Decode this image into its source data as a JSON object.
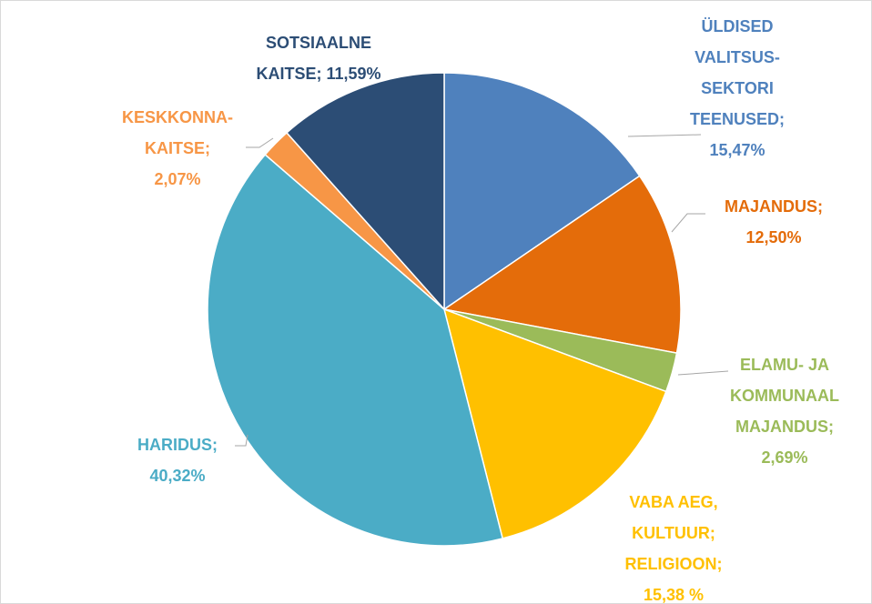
{
  "chart_data": {
    "type": "pie",
    "categories": [
      "ÜLDISED\nVALITSUS-\nSEKTORI\nTEENUSED;",
      "MAJANDUS;",
      "ELAMU- JA\nKOMMUNAAL\nMAJANDUS;",
      "VABA AEG,\nKULTUUR;\nRELIGIOON;",
      "HARIDUS;",
      "KESKKONNA-\nKAITSE;",
      "SOTSIAALNE\nKAITSE;"
    ],
    "values": [
      15.47,
      12.5,
      2.69,
      15.38,
      40.32,
      2.07,
      11.59
    ],
    "value_labels": [
      "15,47%",
      "12,50%",
      "2,69%",
      "15,38 %",
      "40,32%",
      "2,07%",
      "11,59%"
    ],
    "colors": [
      "#4f81bd",
      "#e46c0a",
      "#9bbb59",
      "#ffc000",
      "#4bacc6",
      "#f79646",
      "#2c4d75"
    ]
  }
}
